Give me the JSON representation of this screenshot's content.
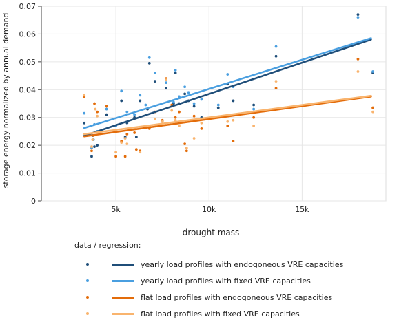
{
  "chart_data": {
    "type": "scatter",
    "title": "",
    "xlabel": "drought mass",
    "ylabel": "storage energy normalized by annual demand",
    "xlim": [
      1000,
      19500
    ],
    "ylim": [
      0,
      0.07
    ],
    "xticks": [
      5000,
      10000,
      15000
    ],
    "xtick_labels": [
      "5k",
      "10k",
      "15k"
    ],
    "yticks": [
      0,
      0.01,
      0.02,
      0.03,
      0.04,
      0.05,
      0.06,
      0.07
    ],
    "ytick_labels": [
      "0",
      "0.01",
      "0.02",
      "0.03",
      "0.04",
      "0.05",
      "0.06",
      "0.07"
    ],
    "grid": true,
    "legend_title": "data / regression:",
    "legend_position": "bottom",
    "series": [
      {
        "name": "yearly load profiles with endogoneous VRE capacities",
        "color": "#1f4e79",
        "regression": [
          [
            3300,
            0.0234
          ],
          [
            18700,
            0.058
          ]
        ],
        "points": [
          [
            3300,
            0.028
          ],
          [
            3700,
            0.016
          ],
          [
            3750,
            0.0235
          ],
          [
            3850,
            0.0195
          ],
          [
            4000,
            0.02
          ],
          [
            4500,
            0.031
          ],
          [
            5000,
            0.025
          ],
          [
            5300,
            0.036
          ],
          [
            5500,
            0.023
          ],
          [
            5600,
            0.028
          ],
          [
            6000,
            0.03
          ],
          [
            6100,
            0.023
          ],
          [
            6300,
            0.036
          ],
          [
            6700,
            0.033
          ],
          [
            6800,
            0.0495
          ],
          [
            7100,
            0.043
          ],
          [
            7500,
            0.0285
          ],
          [
            7700,
            0.0405
          ],
          [
            8100,
            0.035
          ],
          [
            8200,
            0.046
          ],
          [
            8400,
            0.035
          ],
          [
            8700,
            0.0385
          ],
          [
            8900,
            0.036
          ],
          [
            9200,
            0.034
          ],
          [
            9600,
            0.03
          ],
          [
            10500,
            0.0335
          ],
          [
            11000,
            0.042
          ],
          [
            11300,
            0.036
          ],
          [
            12400,
            0.0345
          ],
          [
            13600,
            0.052
          ],
          [
            18000,
            0.067
          ],
          [
            18800,
            0.046
          ]
        ]
      },
      {
        "name": "yearly load profiles with fixed VRE capacities",
        "color": "#4a9fe0",
        "regression": [
          [
            3300,
            0.0262
          ],
          [
            18700,
            0.0585
          ]
        ],
        "points": [
          [
            3300,
            0.0315
          ],
          [
            3700,
            0.019
          ],
          [
            3800,
            0.022
          ],
          [
            3850,
            0.0275
          ],
          [
            4000,
            0.025
          ],
          [
            4500,
            0.033
          ],
          [
            5000,
            0.027
          ],
          [
            5300,
            0.0395
          ],
          [
            5500,
            0.0225
          ],
          [
            5600,
            0.032
          ],
          [
            6000,
            0.031
          ],
          [
            6300,
            0.038
          ],
          [
            6600,
            0.0345
          ],
          [
            6800,
            0.0515
          ],
          [
            7100,
            0.046
          ],
          [
            7700,
            0.0425
          ],
          [
            8100,
            0.0355
          ],
          [
            8200,
            0.047
          ],
          [
            8400,
            0.0375
          ],
          [
            8700,
            0.041
          ],
          [
            8900,
            0.039
          ],
          [
            9200,
            0.035
          ],
          [
            9600,
            0.0365
          ],
          [
            10500,
            0.0345
          ],
          [
            11000,
            0.0455
          ],
          [
            11300,
            0.041
          ],
          [
            12400,
            0.033
          ],
          [
            13600,
            0.0555
          ],
          [
            18000,
            0.066
          ],
          [
            18800,
            0.0465
          ]
        ]
      },
      {
        "name": "flat load profiles with endogoneous VRE capacities",
        "color": "#e36c0a",
        "regression": [
          [
            3300,
            0.0232
          ],
          [
            18700,
            0.0375
          ]
        ],
        "points": [
          [
            3300,
            0.0375
          ],
          [
            3700,
            0.018
          ],
          [
            3800,
            0.0235
          ],
          [
            3850,
            0.035
          ],
          [
            4000,
            0.032
          ],
          [
            4500,
            0.034
          ],
          [
            5000,
            0.016
          ],
          [
            5300,
            0.0215
          ],
          [
            5500,
            0.016
          ],
          [
            5600,
            0.024
          ],
          [
            6000,
            0.0245
          ],
          [
            6100,
            0.0185
          ],
          [
            6300,
            0.018
          ],
          [
            6800,
            0.026
          ],
          [
            7100,
            0.032
          ],
          [
            7500,
            0.029
          ],
          [
            7700,
            0.044
          ],
          [
            8000,
            0.0345
          ],
          [
            8200,
            0.03
          ],
          [
            8400,
            0.032
          ],
          [
            8700,
            0.0205
          ],
          [
            8800,
            0.018
          ],
          [
            9200,
            0.0305
          ],
          [
            9600,
            0.026
          ],
          [
            11000,
            0.027
          ],
          [
            11300,
            0.0215
          ],
          [
            12400,
            0.03
          ],
          [
            13600,
            0.0405
          ],
          [
            18000,
            0.051
          ],
          [
            18800,
            0.0335
          ]
        ]
      },
      {
        "name": "flat load profiles with fixed VRE capacities",
        "color": "#f9b46e",
        "regression": [
          [
            3300,
            0.024
          ],
          [
            18700,
            0.0378
          ]
        ],
        "points": [
          [
            3300,
            0.038
          ],
          [
            3700,
            0.0195
          ],
          [
            3750,
            0.022
          ],
          [
            3900,
            0.033
          ],
          [
            4000,
            0.0305
          ],
          [
            5000,
            0.0175
          ],
          [
            5300,
            0.021
          ],
          [
            5500,
            0.0225
          ],
          [
            5600,
            0.0205
          ],
          [
            6000,
            0.026
          ],
          [
            6300,
            0.0175
          ],
          [
            6800,
            0.027
          ],
          [
            7100,
            0.0295
          ],
          [
            7500,
            0.0285
          ],
          [
            7700,
            0.0435
          ],
          [
            8000,
            0.0325
          ],
          [
            8200,
            0.029
          ],
          [
            8400,
            0.027
          ],
          [
            8800,
            0.019
          ],
          [
            9200,
            0.0225
          ],
          [
            9600,
            0.028
          ],
          [
            11000,
            0.0285
          ],
          [
            11300,
            0.029
          ],
          [
            12400,
            0.027
          ],
          [
            13600,
            0.043
          ],
          [
            18000,
            0.0465
          ],
          [
            18800,
            0.032
          ]
        ]
      }
    ]
  }
}
